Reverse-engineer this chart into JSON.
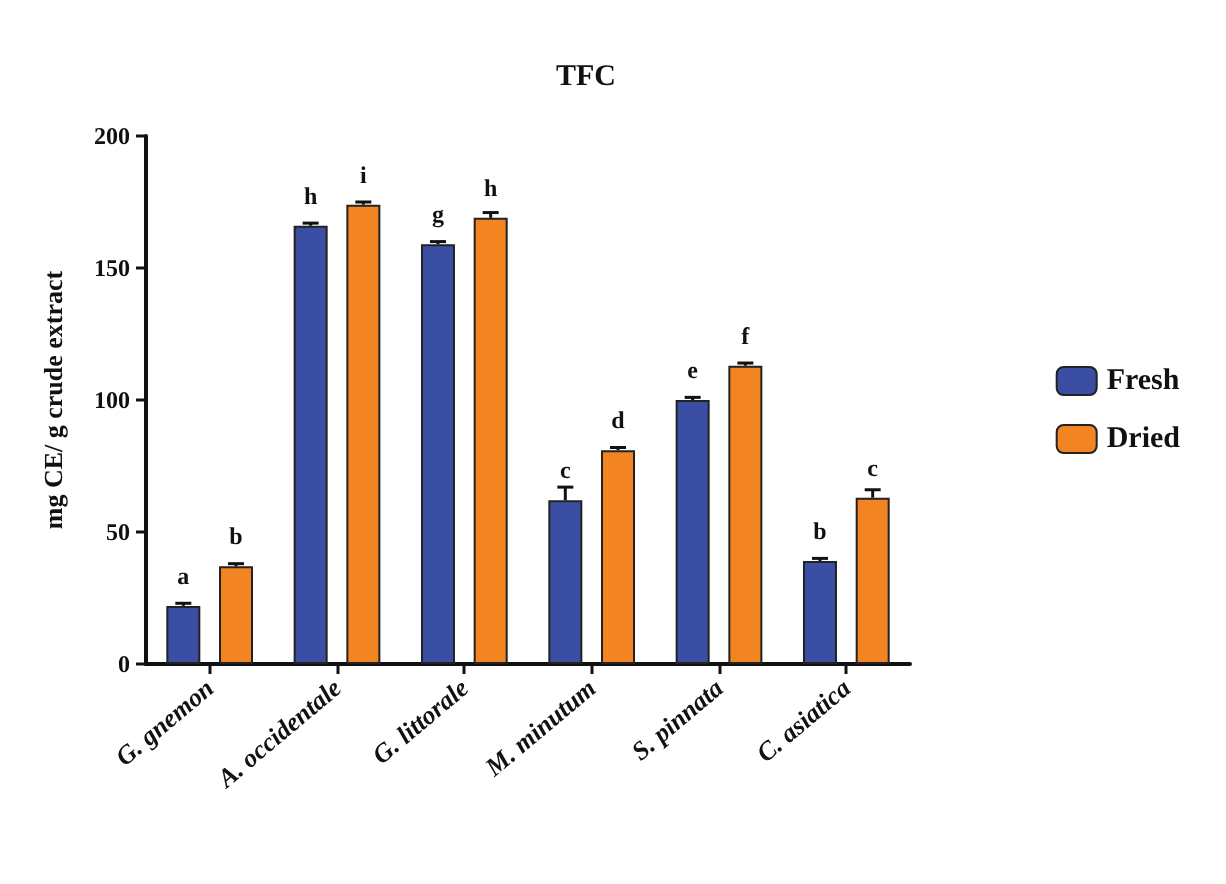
{
  "chart_data": {
    "type": "bar",
    "title": "TFC",
    "ylabel": "mg CE/ g crude extract",
    "categories": [
      "G. gnemon",
      "A. occidentale",
      "G. littorale",
      "M. minutum",
      "S. pinnata",
      "C. asiatica"
    ],
    "series": [
      {
        "name": "Fresh",
        "color": "#3a4fa3",
        "values": [
          22,
          166,
          159,
          62,
          100,
          39
        ],
        "errors": [
          1,
          1,
          1,
          5,
          1,
          1
        ],
        "value_labels": [
          "a",
          "h",
          "g",
          "c",
          "e",
          "b"
        ]
      },
      {
        "name": "Dried",
        "color": "#f28522",
        "values": [
          37,
          174,
          169,
          81,
          113,
          63
        ],
        "errors": [
          1,
          1,
          2,
          1,
          1,
          3
        ],
        "value_labels": [
          "b",
          "i",
          "h",
          "d",
          "f",
          "c"
        ]
      }
    ],
    "ylim": [
      0,
      200
    ],
    "yticks": [
      0,
      50,
      100,
      150,
      200
    ],
    "grid": false,
    "legend": "right"
  }
}
